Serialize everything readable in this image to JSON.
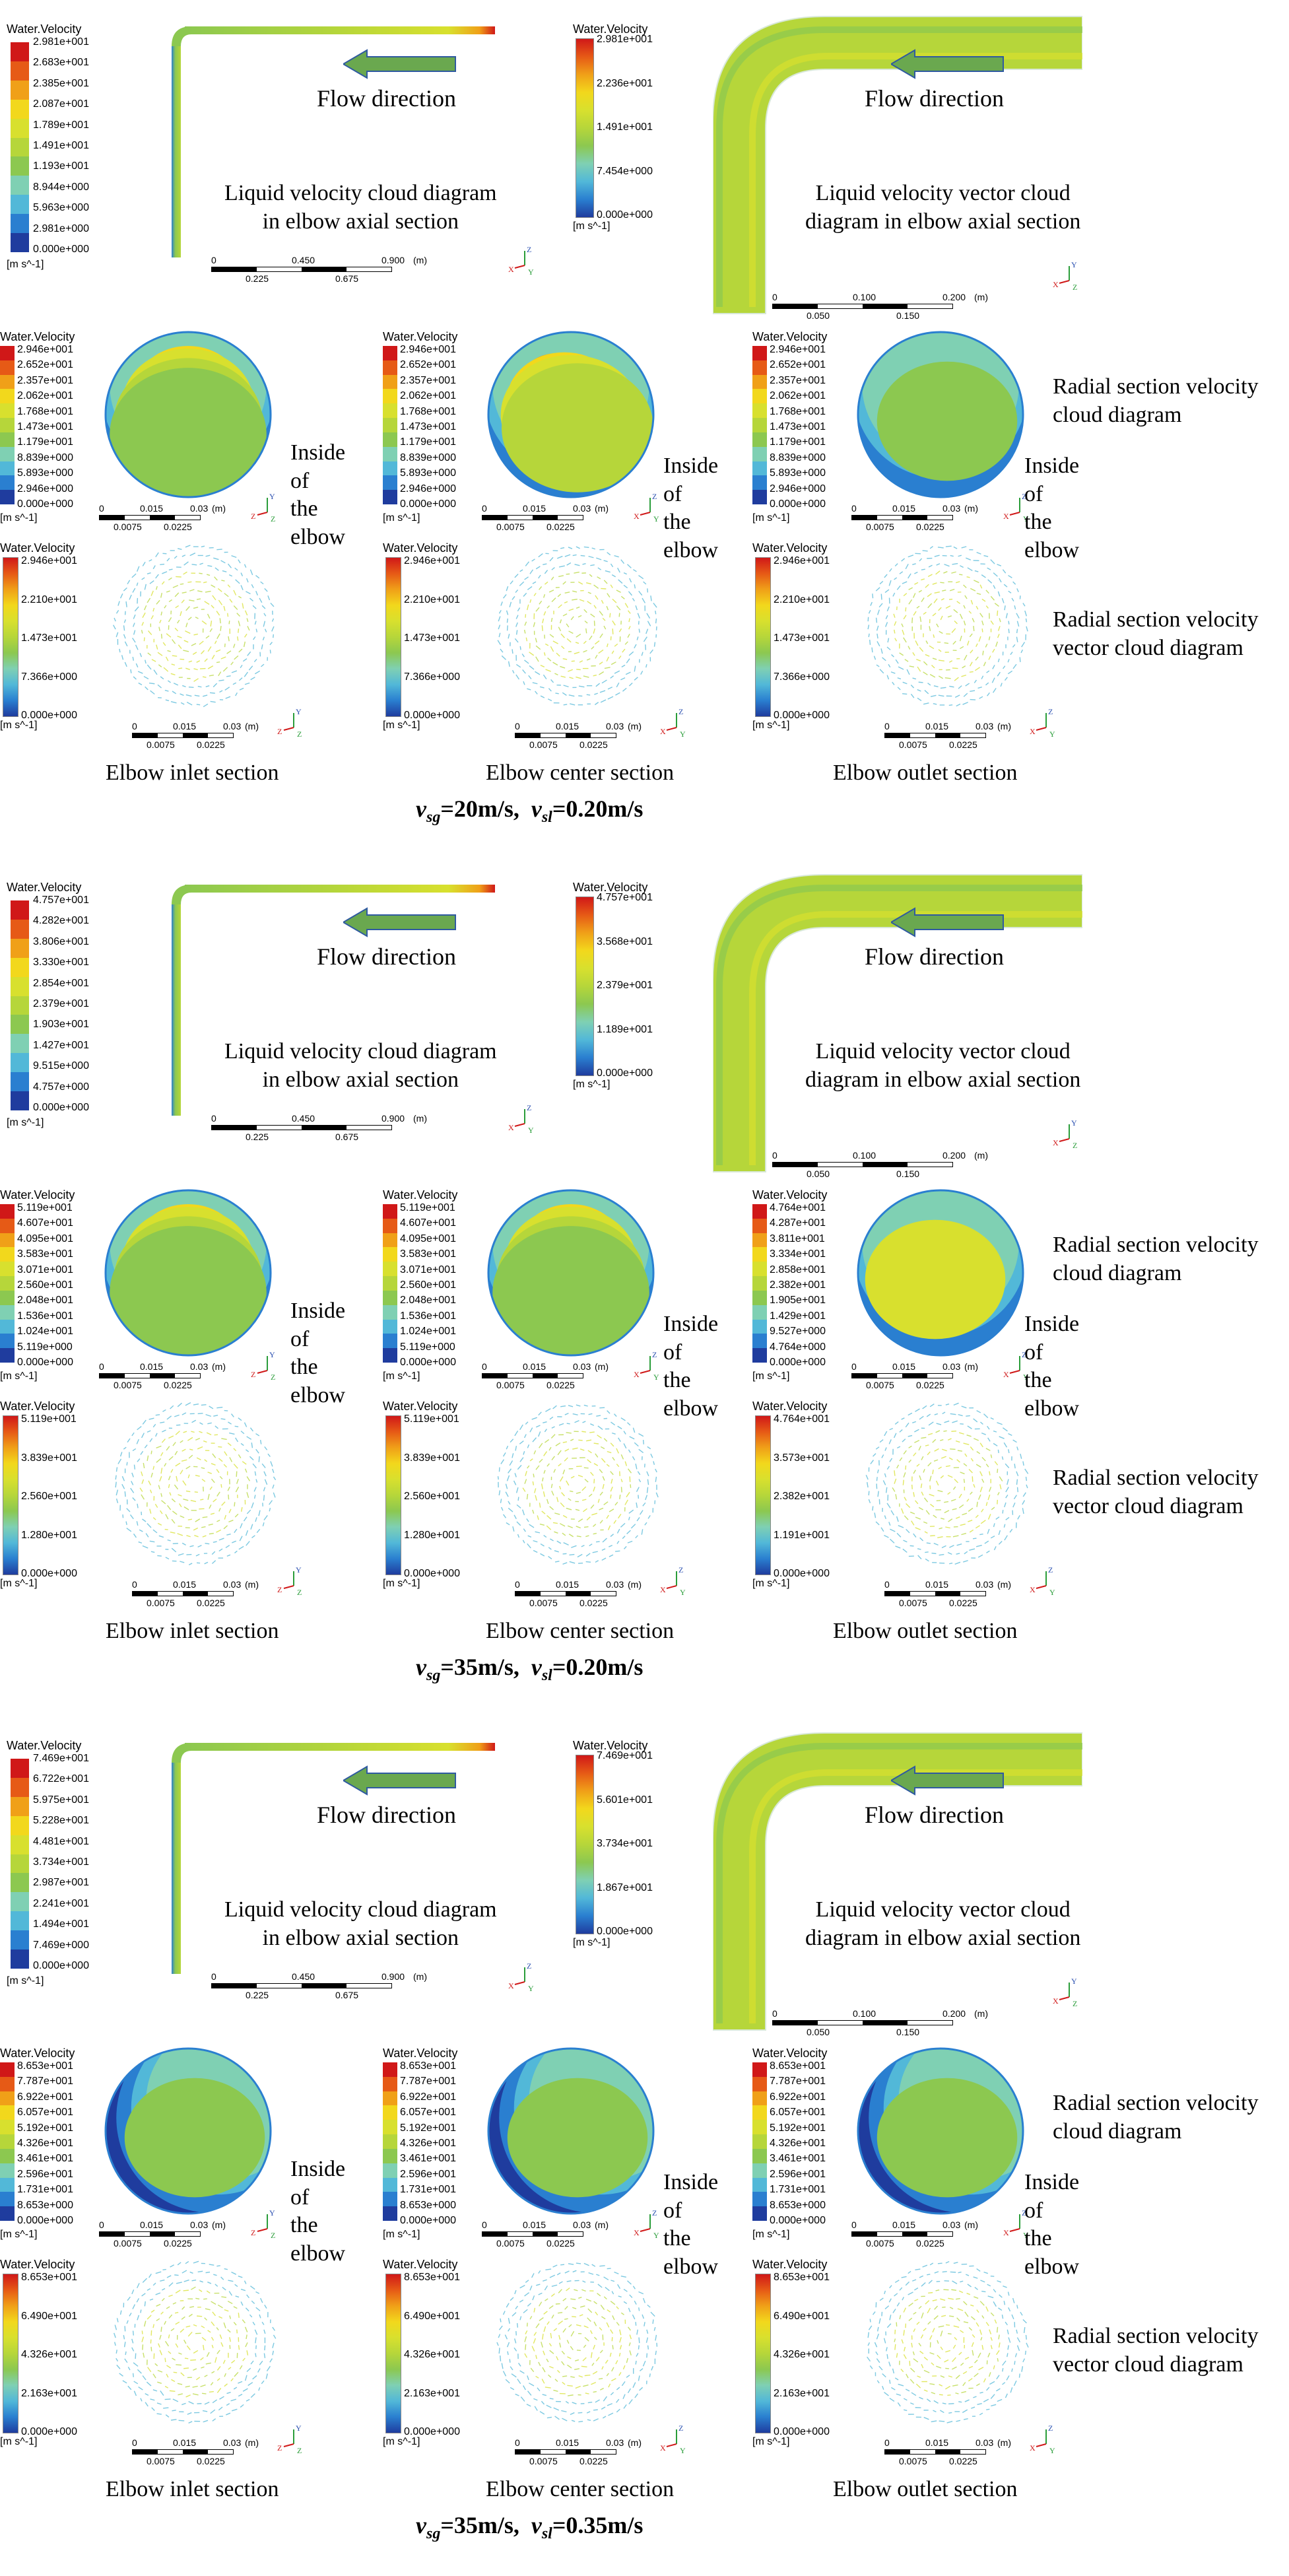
{
  "common": {
    "legend_title": "Water.Velocity",
    "unit": "[m s^-1]",
    "flow_direction": "Flow direction",
    "axial_cloud_caption": [
      "Liquid velocity cloud diagram",
      "in elbow axial section"
    ],
    "axial_vector_caption": [
      "Liquid velocity vector cloud",
      "diagram in elbow axial section"
    ],
    "radial_cloud_caption": [
      "Radial section velocity",
      "cloud diagram"
    ],
    "radial_vector_caption": [
      "Radial section velocity",
      "vector cloud diagram"
    ],
    "inside_elbow": [
      "Inside",
      "of",
      "the",
      "elbow"
    ],
    "section_names": [
      "Elbow inlet section",
      "Elbow center section",
      "Elbow outlet section"
    ],
    "axial_scale": [
      "0",
      "0.450",
      "0.900",
      "(m)",
      "0.225",
      "0.675"
    ],
    "vector_scale": [
      "0",
      "0.100",
      "0.200",
      "(m)",
      "0.050",
      "0.150"
    ],
    "section_scale": [
      "0",
      "0.015",
      "0.03",
      "(m)",
      "0.0075",
      "0.0225"
    ],
    "axis_labels": {
      "x": "X",
      "y": "Y",
      "z": "Z"
    },
    "colormap": [
      "#1f3c9e",
      "#2a7fd0",
      "#52b8d8",
      "#7fd0b3",
      "#8cc850",
      "#b6d63a",
      "#d8e02e",
      "#f2d81c",
      "#f0a018",
      "#e65a16",
      "#d01818"
    ]
  },
  "blocks": [
    {
      "condition": {
        "vsg_value": "=20m/s",
        "vsl_value": "=0.20m/s",
        "sep": ",",
        "vsg_var": "v",
        "vsg_sub": "sg",
        "vsl_var": "v",
        "vsl_sub": "sl"
      },
      "axial_legend": [
        "2.981e+001",
        "2.683e+001",
        "2.385e+001",
        "2.087e+001",
        "1.789e+001",
        "1.491e+001",
        "1.193e+001",
        "8.944e+000",
        "5.963e+000",
        "2.981e+000",
        "0.000e+000"
      ],
      "vector_legend": [
        "2.981e+001",
        "2.236e+001",
        "1.491e+001",
        "7.454e+000",
        "0.000e+000"
      ],
      "radial_legends": [
        [
          "2.946e+001",
          "2.652e+001",
          "2.357e+001",
          "2.062e+001",
          "1.768e+001",
          "1.473e+001",
          "1.179e+001",
          "8.839e+000",
          "5.893e+000",
          "2.946e+000",
          "0.000e+000"
        ],
        [
          "2.946e+001",
          "2.652e+001",
          "2.357e+001",
          "2.062e+001",
          "1.768e+001",
          "1.473e+001",
          "1.179e+001",
          "8.839e+000",
          "5.893e+000",
          "2.946e+000",
          "0.000e+000"
        ],
        [
          "2.946e+001",
          "2.652e+001",
          "2.357e+001",
          "2.062e+001",
          "1.768e+001",
          "1.473e+001",
          "1.179e+001",
          "8.839e+000",
          "5.893e+000",
          "2.946e+000",
          "0.000e+000"
        ]
      ],
      "vector_section_legends": [
        [
          "2.946e+001",
          "2.210e+001",
          "1.473e+001",
          "7.366e+000",
          "0.000e+000"
        ],
        [
          "2.946e+001",
          "2.210e+001",
          "1.473e+001",
          "7.366e+000",
          "0.000e+000"
        ],
        [
          "2.946e+001",
          "2.210e+001",
          "1.473e+001",
          "7.366e+000",
          "0.000e+000"
        ]
      ]
    },
    {
      "condition": {
        "vsg_value": "=35m/s",
        "vsl_value": "=0.20m/s",
        "sep": ",",
        "vsg_var": "v",
        "vsg_sub": "sg",
        "vsl_var": "v",
        "vsl_sub": "sl"
      },
      "axial_legend": [
        "4.757e+001",
        "4.282e+001",
        "3.806e+001",
        "3.330e+001",
        "2.854e+001",
        "2.379e+001",
        "1.903e+001",
        "1.427e+001",
        "9.515e+000",
        "4.757e+000",
        "0.000e+000"
      ],
      "vector_legend": [
        "4.757e+001",
        "3.568e+001",
        "2.379e+001",
        "1.189e+001",
        "0.000e+000"
      ],
      "radial_legends": [
        [
          "5.119e+001",
          "4.607e+001",
          "4.095e+001",
          "3.583e+001",
          "3.071e+001",
          "2.560e+001",
          "2.048e+001",
          "1.536e+001",
          "1.024e+001",
          "5.119e+000",
          "0.000e+000"
        ],
        [
          "5.119e+001",
          "4.607e+001",
          "4.095e+001",
          "3.583e+001",
          "3.071e+001",
          "2.560e+001",
          "2.048e+001",
          "1.536e+001",
          "1.024e+001",
          "5.119e+000",
          "0.000e+000"
        ],
        [
          "4.764e+001",
          "4.287e+001",
          "3.811e+001",
          "3.334e+001",
          "2.858e+001",
          "2.382e+001",
          "1.905e+001",
          "1.429e+001",
          "9.527e+000",
          "4.764e+000",
          "0.000e+000"
        ]
      ],
      "vector_section_legends": [
        [
          "5.119e+001",
          "3.839e+001",
          "2.560e+001",
          "1.280e+001",
          "0.000e+000"
        ],
        [
          "5.119e+001",
          "3.839e+001",
          "2.560e+001",
          "1.280e+001",
          "0.000e+000"
        ],
        [
          "4.764e+001",
          "3.573e+001",
          "2.382e+001",
          "1.191e+001",
          "0.000e+000"
        ]
      ]
    },
    {
      "condition": {
        "vsg_value": "=35m/s",
        "vsl_value": "=0.35m/s",
        "sep": ",",
        "vsg_var": "v",
        "vsg_sub": "sg",
        "vsl_var": "v",
        "vsl_sub": "sl"
      },
      "axial_legend": [
        "7.469e+001",
        "6.722e+001",
        "5.975e+001",
        "5.228e+001",
        "4.481e+001",
        "3.734e+001",
        "2.987e+001",
        "2.241e+001",
        "1.494e+001",
        "7.469e+000",
        "0.000e+000"
      ],
      "vector_legend": [
        "7.469e+001",
        "5.601e+001",
        "3.734e+001",
        "1.867e+001",
        "0.000e+000"
      ],
      "radial_legends": [
        [
          "8.653e+001",
          "7.787e+001",
          "6.922e+001",
          "6.057e+001",
          "5.192e+001",
          "4.326e+001",
          "3.461e+001",
          "2.596e+001",
          "1.731e+001",
          "8.653e+000",
          "0.000e+000"
        ],
        [
          "8.653e+001",
          "7.787e+001",
          "6.922e+001",
          "6.057e+001",
          "5.192e+001",
          "4.326e+001",
          "3.461e+001",
          "2.596e+001",
          "1.731e+001",
          "8.653e+000",
          "0.000e+000"
        ],
        [
          "8.653e+001",
          "7.787e+001",
          "6.922e+001",
          "6.057e+001",
          "5.192e+001",
          "4.326e+001",
          "3.461e+001",
          "2.596e+001",
          "1.731e+001",
          "8.653e+000",
          "0.000e+000"
        ]
      ],
      "vector_section_legends": [
        [
          "8.653e+001",
          "6.490e+001",
          "4.326e+001",
          "2.163e+001",
          "0.000e+000"
        ],
        [
          "8.653e+001",
          "6.490e+001",
          "4.326e+001",
          "2.163e+001",
          "0.000e+000"
        ],
        [
          "8.653e+001",
          "6.490e+001",
          "4.326e+001",
          "2.163e+001",
          "0.000e+000"
        ]
      ]
    }
  ]
}
